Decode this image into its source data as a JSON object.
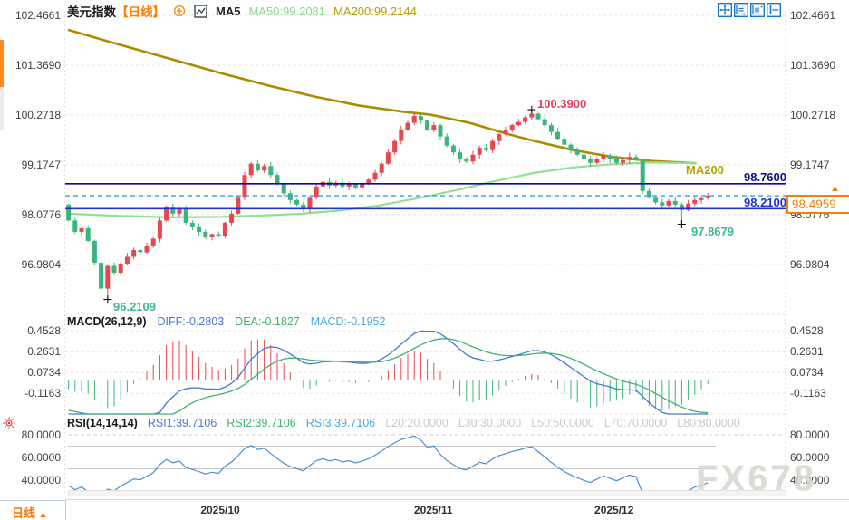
{
  "header": {
    "symbol": "美元指数",
    "period_tag": "【日线】",
    "ma5": "MA5",
    "ma50": "MA50:99.2081",
    "ma200": "MA200:99.2144"
  },
  "main_chart": {
    "y_ticks": [
      "102.4661",
      "101.3690",
      "100.2718",
      "99.1747",
      "98.0776",
      "96.9804"
    ],
    "resistance_label": "98.7600",
    "support_label": "98.2100",
    "current_price_label": "98.4959",
    "annotation_high": "100.3900",
    "annotation_low_left": "96.2109",
    "annotation_low_right": "97.8679",
    "ma200_tag": "MA200"
  },
  "macd_panel": {
    "title": "MACD(26,12,9)",
    "diff": "DIFF:-0.2803",
    "dea": "DEA:-0.1827",
    "macd": "MACD:-0.1952",
    "y_ticks": [
      "0.4528",
      "0.2631",
      "0.0734",
      "-0.1163"
    ]
  },
  "rsi_panel": {
    "title": "RSI(14,14,14)",
    "rsi1": "RSI1:39.7106",
    "rsi2": "RSI2:39.7106",
    "rsi3": "RSI3:39.7106",
    "l20": "L20:20.0000",
    "l30": "L30:30.0000",
    "l50": "L50:50.0000",
    "l70": "L70:70.0000",
    "l80": "L80:80.0000",
    "y_ticks": [
      "80.0000",
      "60.0000",
      "40.0000"
    ]
  },
  "bottom_bar": {
    "period": "日线",
    "arrow": "▲"
  },
  "watermark": "FX678",
  "colors": {
    "up": "#e5494f",
    "down": "#3cb47c",
    "ma50": "#93e093",
    "ma200": "#ab8b00",
    "diff_line": "#4679d2",
    "dea_line": "#3cb371",
    "rsi_line": "#4a90d2",
    "hline_dark": "#0b0b8f",
    "hline_blue": "#2233cc",
    "dashed_current": "#2b9ff0",
    "current_box": "#f08108",
    "accent_orange": "#ff7300",
    "annotation_red": "#e0415e",
    "annotation_green": "#3cb98d",
    "grid": "#e7e7e7",
    "axis_text": "#3f3f3f"
  },
  "chart_data": {
    "type": "candlestick",
    "symbol": "美元指数",
    "period": "日线",
    "y_axis_ticks": [
      102.4661,
      101.369,
      100.2718,
      99.1747,
      98.0776,
      96.9804
    ],
    "x_axis": {
      "labels": [
        "2025/10",
        "2025/11",
        "2025/12"
      ],
      "fractions": [
        0.235,
        0.564,
        0.843
      ]
    },
    "candles": {
      "first_open": 98.3,
      "closes": [
        97.95,
        97.7,
        97.78,
        97.5,
        97.02,
        96.45,
        96.95,
        96.8,
        97.0,
        97.15,
        97.3,
        97.25,
        97.4,
        97.55,
        97.95,
        98.25,
        98.1,
        98.2,
        97.9,
        97.8,
        97.7,
        97.58,
        97.65,
        97.6,
        97.9,
        98.1,
        98.45,
        98.95,
        99.2,
        99.05,
        99.15,
        98.95,
        98.75,
        98.55,
        98.4,
        98.3,
        98.2,
        98.45,
        98.7,
        98.8,
        98.72,
        98.78,
        98.7,
        98.75,
        98.68,
        98.75,
        98.85,
        99.0,
        99.2,
        99.45,
        99.7,
        99.95,
        100.1,
        100.25,
        100.15,
        99.95,
        100.05,
        99.8,
        99.6,
        99.45,
        99.3,
        99.25,
        99.4,
        99.55,
        99.5,
        99.7,
        99.85,
        99.95,
        100.05,
        100.12,
        100.22,
        100.3,
        100.18,
        100.05,
        99.9,
        99.75,
        99.62,
        99.5,
        99.4,
        99.3,
        99.22,
        99.3,
        99.38,
        99.3,
        99.22,
        99.28,
        99.35,
        99.3,
        98.6,
        98.45,
        98.35,
        98.28,
        98.38,
        98.3,
        98.18,
        98.32,
        98.4,
        98.44,
        98.4959
      ],
      "overrides": {
        "6": {
          "low": 96.2109
        },
        "71": {
          "high": 100.39
        },
        "94": {
          "low": 97.8679
        }
      }
    },
    "horizontal_lines": [
      {
        "value": 98.76,
        "label": "98.7600",
        "style": "solid-dark"
      },
      {
        "value": 98.21,
        "label": "98.2100",
        "style": "solid-blue"
      },
      {
        "value": 98.4959,
        "label": "98.4959",
        "style": "dashed-current"
      }
    ],
    "ma50": {
      "value": 99.2081,
      "points": [
        [
          0,
          98.1
        ],
        [
          0.08,
          98.05
        ],
        [
          0.16,
          98.02
        ],
        [
          0.24,
          98.03
        ],
        [
          0.3,
          98.06
        ],
        [
          0.36,
          98.1
        ],
        [
          0.42,
          98.17
        ],
        [
          0.48,
          98.28
        ],
        [
          0.54,
          98.44
        ],
        [
          0.6,
          98.62
        ],
        [
          0.66,
          98.82
        ],
        [
          0.72,
          99.0
        ],
        [
          0.78,
          99.12
        ],
        [
          0.84,
          99.19
        ],
        [
          0.9,
          99.23
        ],
        [
          0.94,
          99.22
        ],
        [
          0.97,
          99.21
        ]
      ]
    },
    "ma200": {
      "value": 99.2144,
      "points": [
        [
          0,
          102.15
        ],
        [
          0.08,
          101.82
        ],
        [
          0.16,
          101.5
        ],
        [
          0.24,
          101.18
        ],
        [
          0.31,
          100.92
        ],
        [
          0.38,
          100.68
        ],
        [
          0.45,
          100.48
        ],
        [
          0.52,
          100.34
        ],
        [
          0.56,
          100.28
        ],
        [
          0.62,
          100.1
        ],
        [
          0.68,
          99.85
        ],
        [
          0.72,
          99.7
        ],
        [
          0.78,
          99.5
        ],
        [
          0.84,
          99.35
        ],
        [
          0.9,
          99.26
        ],
        [
          0.97,
          99.21
        ]
      ]
    },
    "macd": {
      "params": [
        26,
        12,
        9
      ],
      "diff": -0.2803,
      "dea": -0.1827,
      "macd": -0.1952,
      "y_ticks": [
        0.4528,
        0.2631,
        0.0734,
        -0.1163
      ],
      "seed_ema12": 98.35,
      "seed_ema26": 98.65,
      "seed_dea": -0.26
    },
    "rsi": {
      "params": [
        14,
        14,
        14
      ],
      "rsi1": 39.7106,
      "rsi2": 39.7106,
      "rsi3": 39.7106,
      "levels": [
        20,
        30,
        50,
        70,
        80
      ],
      "y_ticks": [
        80,
        60,
        40
      ],
      "seed_gain": 0.06,
      "seed_loss": 0.11
    },
    "extremes": {
      "high": 100.39,
      "low": 96.2109,
      "recent_low": 97.8679,
      "last_close": 98.4959
    }
  }
}
